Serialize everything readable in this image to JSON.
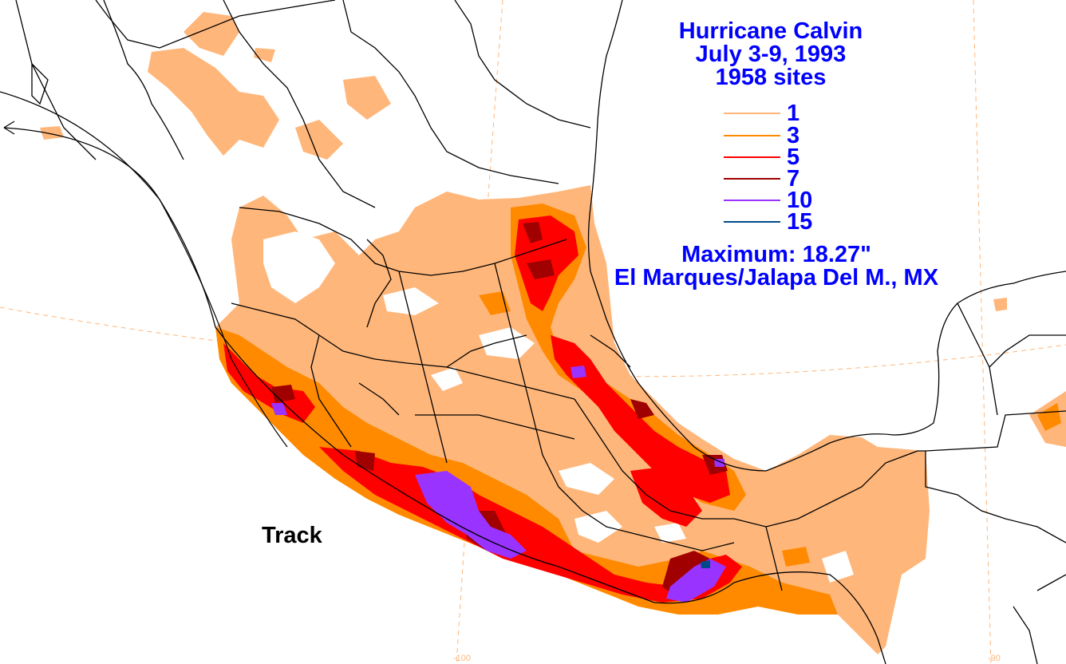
{
  "title": {
    "line1": "Hurricane Calvin",
    "line2": "July 3-9, 1993",
    "line3": "1958 sites"
  },
  "legend": [
    {
      "label": "1",
      "color": "#ffb67a"
    },
    {
      "label": "3",
      "color": "#ff8a00"
    },
    {
      "label": "5",
      "color": "#ff0000"
    },
    {
      "label": "7",
      "color": "#a00000"
    },
    {
      "label": "10",
      "color": "#9933ff"
    },
    {
      "label": "15",
      "color": "#004a8a"
    }
  ],
  "maximum": {
    "label": "Maximum:  18.27\"",
    "location": "El Marques/Jalapa Del M., MX"
  },
  "track_label": "Track",
  "ticks": {
    "lon_100": "-100",
    "lon_90": "-90"
  },
  "colors": {
    "text": "#0000ff",
    "grid": "#ffb67a",
    "border": "#000000"
  }
}
